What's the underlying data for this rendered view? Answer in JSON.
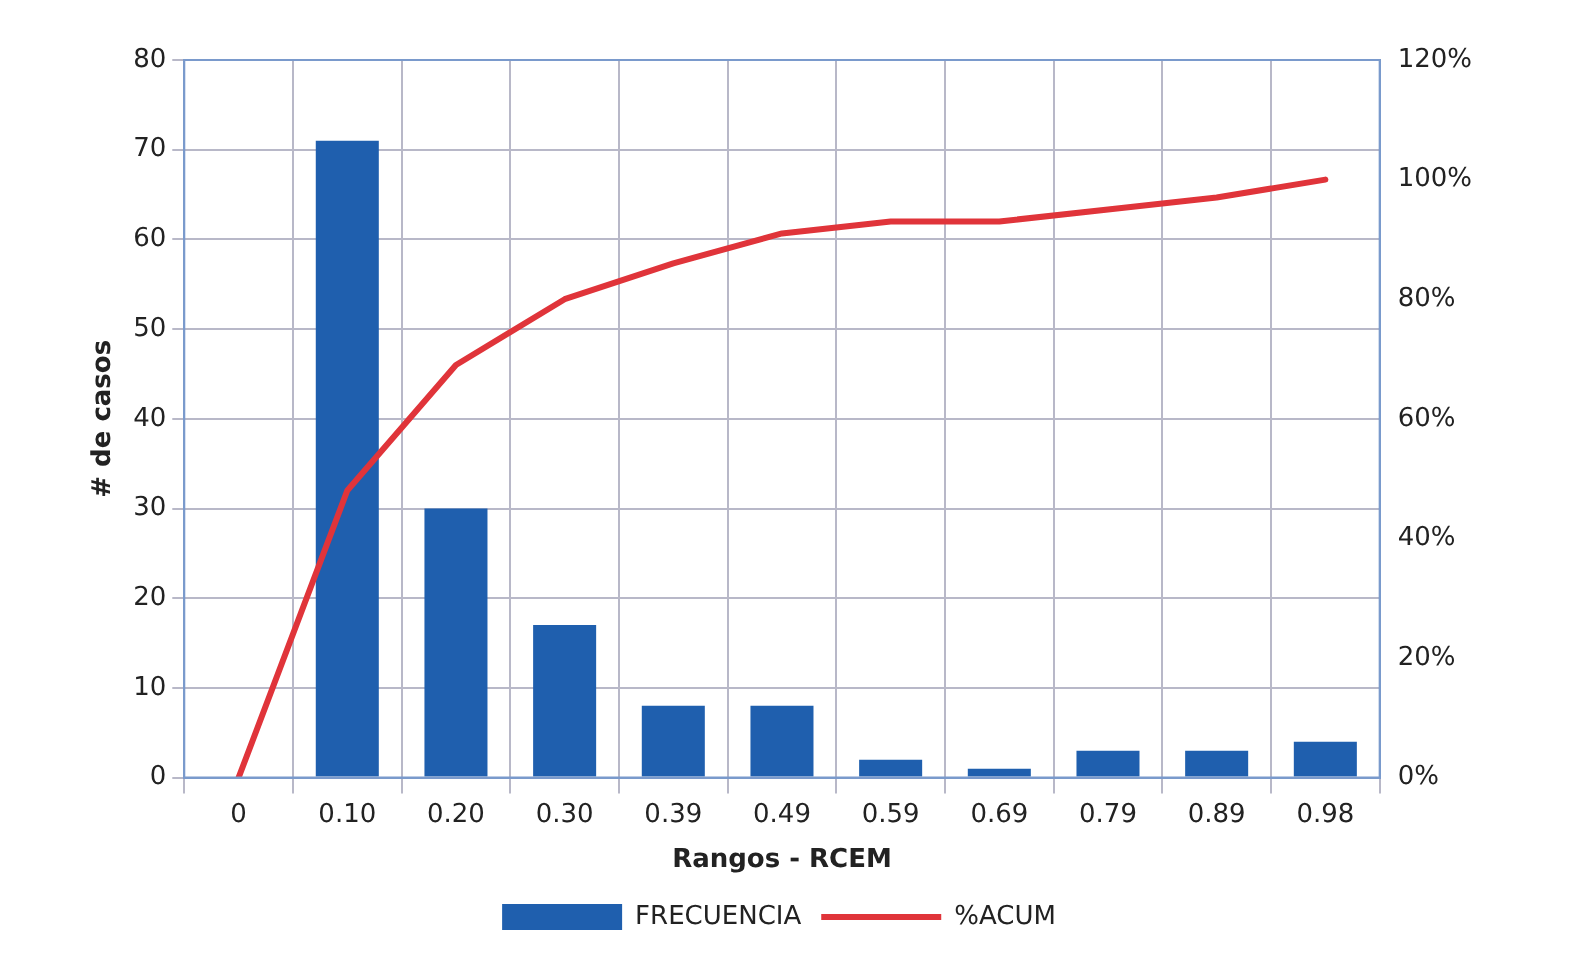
{
  "chart_data": {
    "type": "bar",
    "xlabel": "Rangos - RCEM",
    "ylabel": "# de casos",
    "categories": [
      "0",
      "0.10",
      "0.20",
      "0.30",
      "0.39",
      "0.49",
      "0.59",
      "0.69",
      "0.79",
      "0.89",
      "0.98"
    ],
    "series": [
      {
        "name": "FRECUENCIA",
        "color": "#1f5fae",
        "values": [
          0,
          71,
          30,
          17,
          8,
          8,
          2,
          1,
          3,
          3,
          4
        ]
      },
      {
        "name": "%ACUM",
        "type": "line",
        "axis": "y2",
        "color": "#e0343a",
        "values": [
          0,
          48,
          69,
          80,
          86,
          91,
          93,
          93,
          95,
          97,
          100
        ]
      }
    ],
    "ylim": [
      0,
      80
    ],
    "yticks": [
      0,
      10,
      20,
      30,
      40,
      50,
      60,
      70,
      80
    ],
    "y2lim": [
      0,
      120
    ],
    "y2ticks": [
      {
        "value": 0,
        "label": "0%"
      },
      {
        "value": 20,
        "label": "20%"
      },
      {
        "value": 40,
        "label": "40%"
      },
      {
        "value": 60,
        "label": "60%"
      },
      {
        "value": 80,
        "label": "80%"
      },
      {
        "value": 100,
        "label": "100%"
      },
      {
        "value": 120,
        "label": "120%"
      }
    ],
    "grid": true,
    "legend": "bottom",
    "marker": "none",
    "line_style": "solid"
  }
}
